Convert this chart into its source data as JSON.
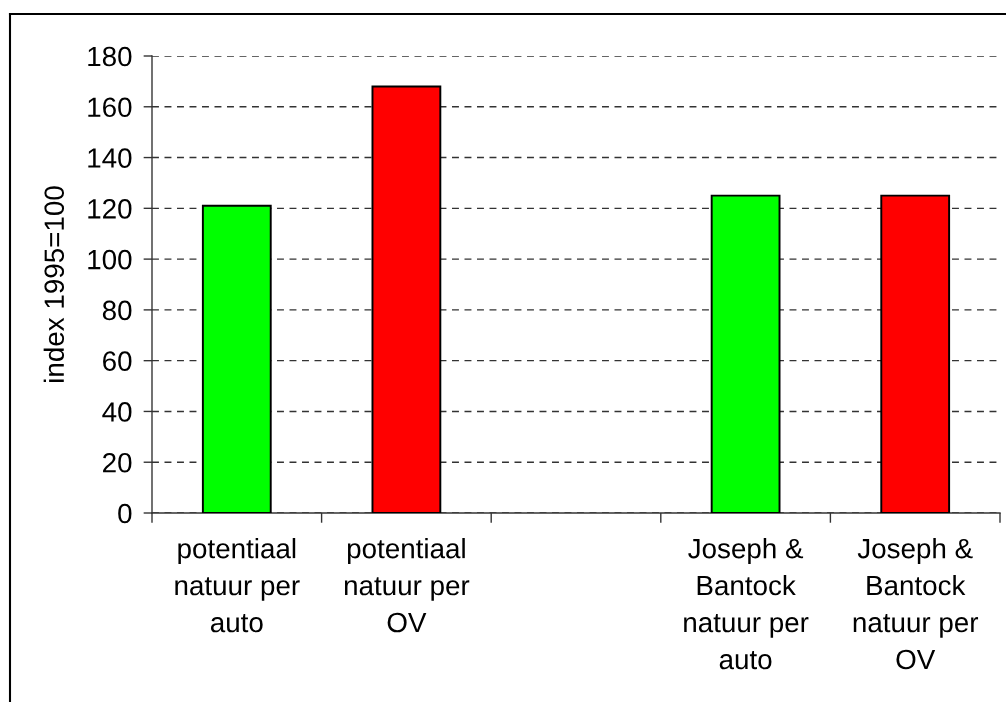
{
  "chart_data": {
    "type": "bar",
    "ylabel": "index 1995=100",
    "categories": [
      "potentiaal\nnatuur per\nauto",
      "potentiaal\nnatuur per\nOV",
      null,
      "Joseph &\nBantock\nnatuur per\nauto",
      "Joseph &\nBantock\nnatuur per\nOV"
    ],
    "values": [
      121,
      168,
      null,
      125,
      125
    ],
    "colors": [
      "#00ff00",
      "#ff0000",
      null,
      "#00ff00",
      "#ff0000"
    ],
    "ylim": [
      0,
      180
    ],
    "yticks": [
      0,
      20,
      40,
      60,
      80,
      100,
      120,
      140,
      160,
      180
    ],
    "grid": "y"
  }
}
